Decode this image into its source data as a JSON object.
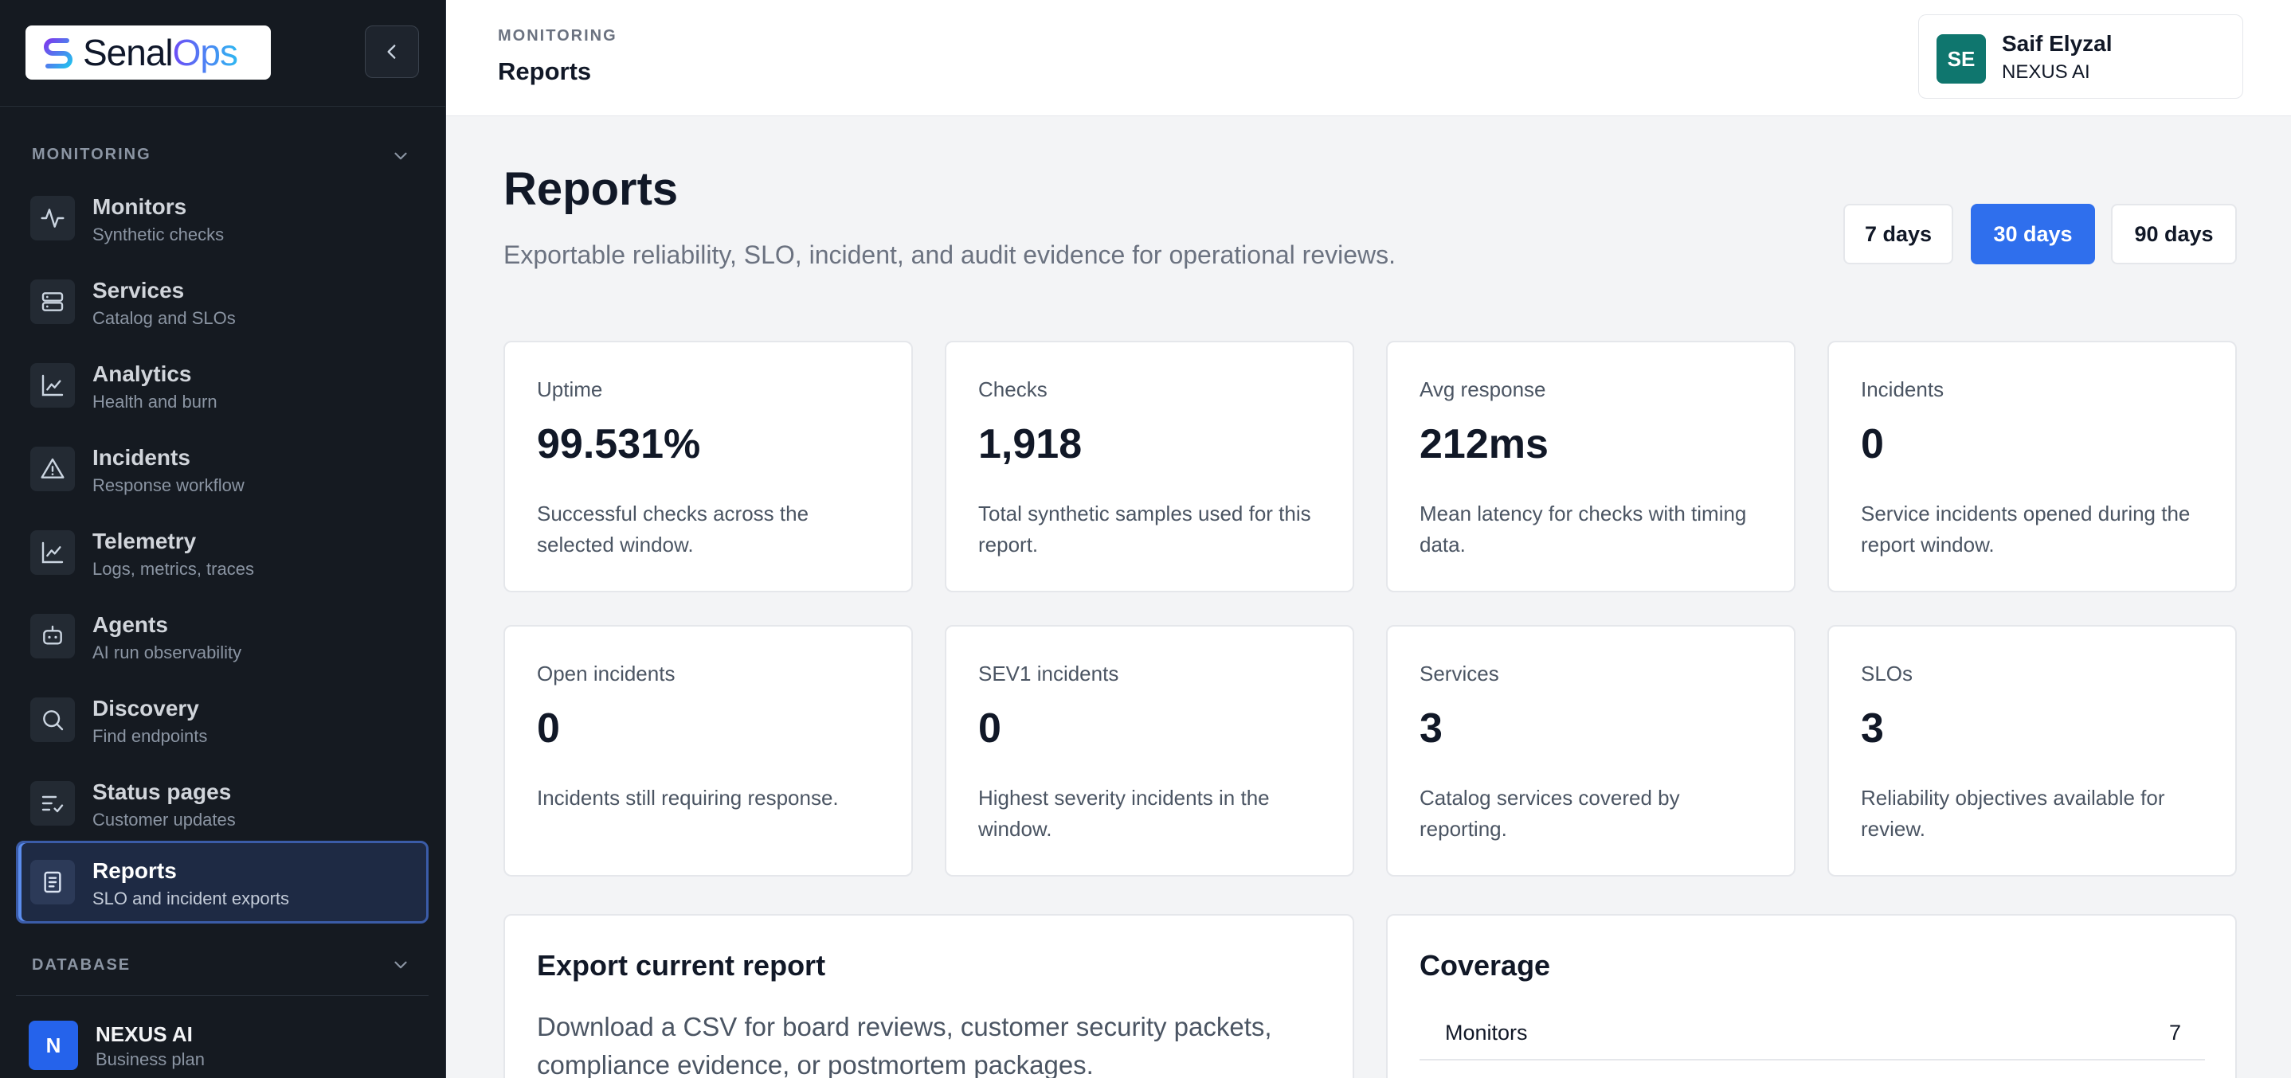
{
  "brand": {
    "name_a": "Senal",
    "name_b": "Ops"
  },
  "sidebar": {
    "section_monitoring": "MONITORING",
    "section_database": "DATABASE",
    "items": [
      {
        "label": "Monitors",
        "sub": "Synthetic checks"
      },
      {
        "label": "Services",
        "sub": "Catalog and SLOs"
      },
      {
        "label": "Analytics",
        "sub": "Health and burn"
      },
      {
        "label": "Incidents",
        "sub": "Response workflow"
      },
      {
        "label": "Telemetry",
        "sub": "Logs, metrics, traces"
      },
      {
        "label": "Agents",
        "sub": "AI run observability"
      },
      {
        "label": "Discovery",
        "sub": "Find endpoints"
      },
      {
        "label": "Status pages",
        "sub": "Customer updates"
      },
      {
        "label": "Reports",
        "sub": "SLO and incident exports"
      }
    ],
    "org": {
      "initial": "N",
      "name": "NEXUS AI",
      "plan": "Business plan"
    }
  },
  "header": {
    "section": "MONITORING",
    "title": "Reports"
  },
  "user": {
    "initials": "SE",
    "name": "Saif Elyzal",
    "org": "NEXUS AI"
  },
  "main": {
    "title": "Reports",
    "subtitle": "Exportable reliability, SLO, incident, and audit evidence for operational reviews.",
    "ranges": [
      "7 days",
      "30 days",
      "90 days"
    ],
    "selected_range": "30 days",
    "stats": [
      {
        "label": "Uptime",
        "value": "99.531%",
        "desc": "Successful checks across the selected window."
      },
      {
        "label": "Checks",
        "value": "1,918",
        "desc": "Total synthetic samples used for this report."
      },
      {
        "label": "Avg response",
        "value": "212ms",
        "desc": "Mean latency for checks with timing data."
      },
      {
        "label": "Incidents",
        "value": "0",
        "desc": "Service incidents opened during the report window."
      },
      {
        "label": "Open incidents",
        "value": "0",
        "desc": "Incidents still requiring response."
      },
      {
        "label": "SEV1 incidents",
        "value": "0",
        "desc": "Highest severity incidents in the window."
      },
      {
        "label": "Services",
        "value": "3",
        "desc": "Catalog services covered by reporting."
      },
      {
        "label": "SLOs",
        "value": "3",
        "desc": "Reliability objectives available for review."
      }
    ],
    "export": {
      "title": "Export current report",
      "text": "Download a CSV for board reviews, customer security packets, compliance evidence, or postmortem packages."
    },
    "coverage": {
      "title": "Coverage",
      "rows": [
        {
          "name": "Monitors",
          "value": "7"
        }
      ]
    }
  }
}
